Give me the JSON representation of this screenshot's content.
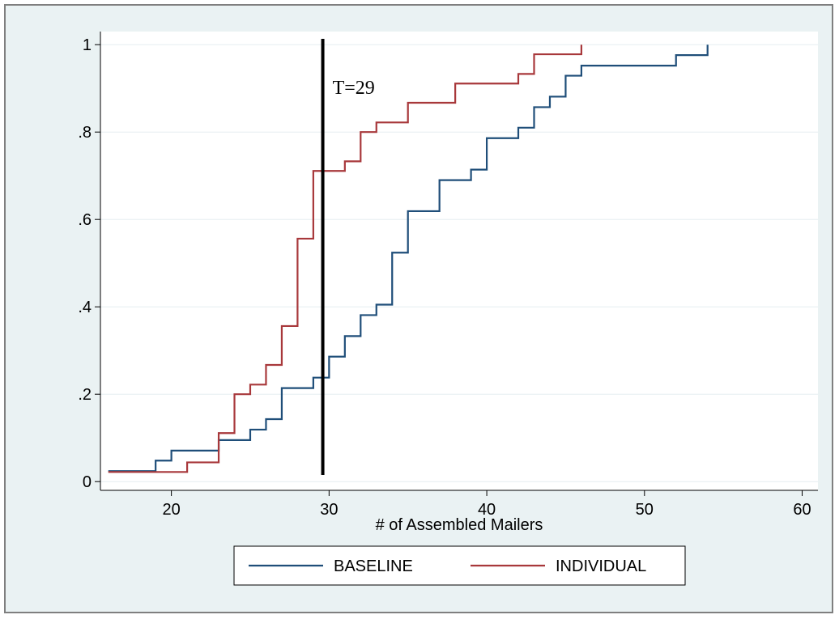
{
  "chart_data": {
    "type": "line",
    "step": true,
    "title": "",
    "xlabel": "# of Assembled Mailers",
    "ylabel": "",
    "xlim": [
      15.5,
      61
    ],
    "ylim": [
      -0.02,
      1.03
    ],
    "xticks": [
      20,
      30,
      40,
      50,
      60
    ],
    "xtick_labels": [
      "20",
      "30",
      "40",
      "50",
      "60"
    ],
    "yticks": [
      0,
      0.2,
      0.4,
      0.6,
      0.8,
      1
    ],
    "ytick_labels": [
      "0",
      ".2",
      ".4",
      ".6",
      ".8",
      "1"
    ],
    "grid": true,
    "legend_position": "bottom",
    "vline": {
      "x": 29.6,
      "label": "T=29"
    },
    "series": [
      {
        "name": "BASELINE",
        "color": "#1f4e79",
        "x": [
          16,
          19,
          20,
          23,
          25,
          26,
          27,
          29,
          30,
          31,
          32,
          33,
          34,
          35,
          37,
          39,
          40,
          42,
          43,
          44,
          45,
          46,
          52,
          54
        ],
        "y": [
          0.024,
          0.048,
          0.071,
          0.095,
          0.119,
          0.143,
          0.214,
          0.238,
          0.286,
          0.333,
          0.381,
          0.405,
          0.524,
          0.619,
          0.69,
          0.714,
          0.786,
          0.81,
          0.857,
          0.881,
          0.929,
          0.952,
          0.976,
          1.0
        ]
      },
      {
        "name": "INDIVIDUAL",
        "color": "#a8383b",
        "x": [
          16,
          21,
          23,
          24,
          25,
          26,
          27,
          28,
          29,
          31,
          32,
          33,
          35,
          38,
          42,
          43,
          46
        ],
        "y": [
          0.022,
          0.044,
          0.111,
          0.2,
          0.222,
          0.267,
          0.356,
          0.556,
          0.711,
          0.733,
          0.8,
          0.822,
          0.867,
          0.911,
          0.933,
          0.978,
          1.0
        ]
      }
    ]
  }
}
